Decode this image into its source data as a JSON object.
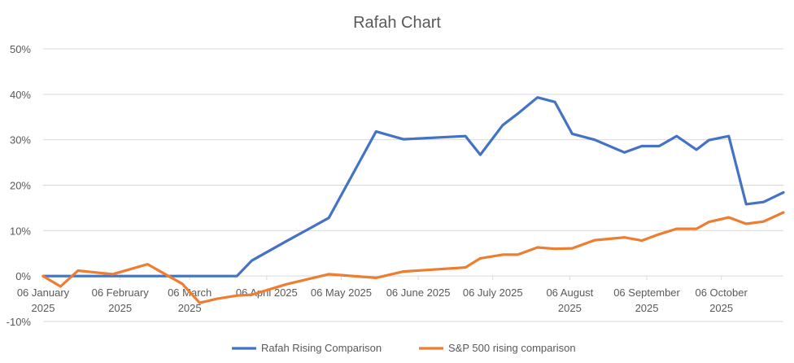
{
  "chart_data": {
    "type": "line",
    "title": "Rafah Chart",
    "xlabel": "",
    "ylabel": "",
    "ylim": [
      -0.1,
      0.5
    ],
    "yticks": [
      -0.1,
      0,
      0.1,
      0.2,
      0.3,
      0.4,
      0.5
    ],
    "ytick_labels": [
      "-10%",
      "0%",
      "10%",
      "20%",
      "30%",
      "40%",
      "50%"
    ],
    "xlim": [
      "2025-01-06",
      "2025-10-31"
    ],
    "xticks": [
      "2025-01-06",
      "2025-02-06",
      "2025-03-06",
      "2025-04-06",
      "2025-05-06",
      "2025-06-06",
      "2025-07-06",
      "2025-08-06",
      "2025-09-06",
      "2025-10-06"
    ],
    "xtick_labels": [
      [
        "06 January",
        "2025"
      ],
      [
        "06 February",
        "2025"
      ],
      [
        "06 March",
        "2025"
      ],
      [
        "06 April 2025"
      ],
      [
        "06 May 2025"
      ],
      [
        "06 June 2025"
      ],
      [
        "06 July 2025"
      ],
      [
        "06 August",
        "2025"
      ],
      [
        "06 September",
        "2025"
      ],
      [
        "06 October",
        "2025"
      ]
    ],
    "grid": true,
    "legend_position": "bottom",
    "x": [
      "2025-01-06",
      "2025-01-13",
      "2025-01-20",
      "2025-02-03",
      "2025-02-10",
      "2025-02-17",
      "2025-03-03",
      "2025-03-10",
      "2025-03-17",
      "2025-03-25",
      "2025-03-31",
      "2025-04-14",
      "2025-05-01",
      "2025-05-20",
      "2025-05-31",
      "2025-06-25",
      "2025-07-01",
      "2025-07-10",
      "2025-07-16",
      "2025-07-24",
      "2025-07-31",
      "2025-08-07",
      "2025-08-16",
      "2025-08-28",
      "2025-09-04",
      "2025-09-11",
      "2025-09-18",
      "2025-09-26",
      "2025-10-01",
      "2025-10-09",
      "2025-10-16",
      "2025-10-23",
      "2025-10-31"
    ],
    "series": [
      {
        "name": "Rafah Rising Comparison",
        "color": "#4472C4",
        "values": [
          0,
          0,
          0,
          0,
          0,
          0,
          0,
          0,
          0,
          0,
          0.034,
          0.077,
          0.128,
          0.318,
          0.301,
          0.308,
          0.267,
          0.332,
          0.357,
          0.393,
          0.383,
          0.313,
          0.3,
          0.272,
          0.286,
          0.286,
          0.308,
          0.278,
          0.299,
          0.308,
          0.158,
          0.163,
          0.184
        ]
      },
      {
        "name": "S&P 500 rising comparison",
        "color": "#ED7D31",
        "values": [
          0,
          -0.023,
          0.012,
          0.004,
          0.015,
          0.026,
          -0.017,
          -0.059,
          -0.05,
          -0.043,
          -0.041,
          -0.018,
          0.004,
          -0.004,
          0.01,
          0.019,
          0.039,
          0.047,
          0.047,
          0.063,
          0.06,
          0.061,
          0.079,
          0.085,
          0.078,
          0.092,
          0.104,
          0.104,
          0.119,
          0.129,
          0.115,
          0.12,
          0.14
        ]
      }
    ]
  }
}
